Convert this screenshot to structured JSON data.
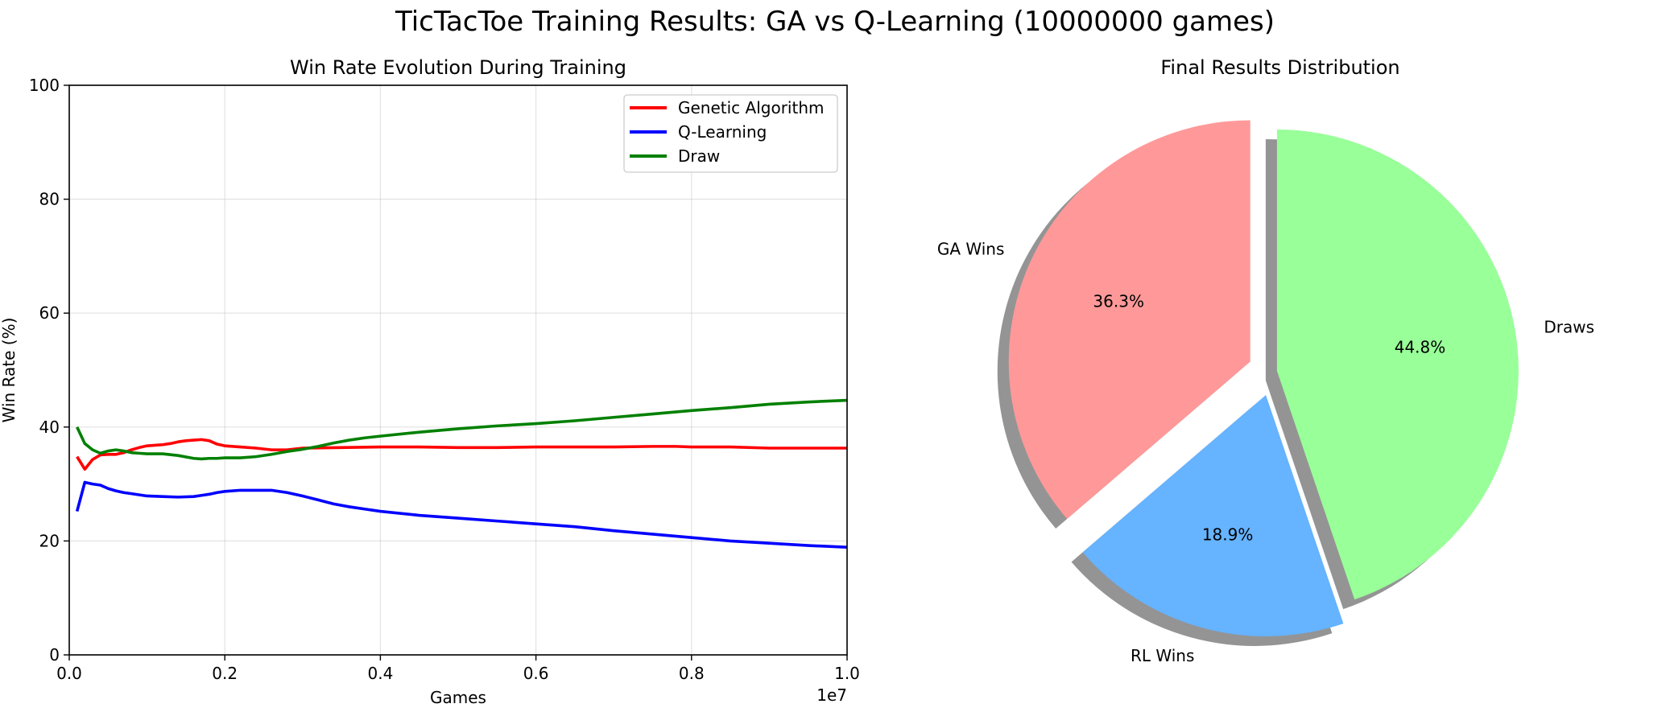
{
  "suptitle": "TicTacToe Training Results: GA vs Q-Learning (10000000 games)",
  "chart_data": [
    {
      "type": "line",
      "title": "Win Rate Evolution During Training",
      "xlabel": "Games",
      "ylabel": "Win Rate (%)",
      "x_offset_label": "1e7",
      "xlim": [
        0,
        1.0
      ],
      "ylim": [
        0,
        100
      ],
      "xticks": [
        0.0,
        0.2,
        0.4,
        0.6,
        0.8,
        1.0
      ],
      "xtick_labels": [
        "0.0",
        "0.2",
        "0.4",
        "0.6",
        "0.8",
        "1.0"
      ],
      "yticks": [
        0,
        20,
        40,
        60,
        80,
        100
      ],
      "ytick_labels": [
        "0",
        "20",
        "40",
        "60",
        "80",
        "100"
      ],
      "grid": true,
      "legend_position": "top-right",
      "series": [
        {
          "name": "Genetic Algorithm",
          "color": "#ff0000",
          "x": [
            0.01,
            0.02,
            0.03,
            0.04,
            0.05,
            0.06,
            0.07,
            0.08,
            0.09,
            0.1,
            0.11,
            0.12,
            0.13,
            0.14,
            0.15,
            0.16,
            0.17,
            0.18,
            0.19,
            0.2,
            0.22,
            0.24,
            0.26,
            0.28,
            0.3,
            0.35,
            0.4,
            0.45,
            0.5,
            0.55,
            0.6,
            0.65,
            0.7,
            0.75,
            0.78,
            0.8,
            0.85,
            0.9,
            0.95,
            1.0
          ],
          "y": [
            34.8,
            32.6,
            34.3,
            35.1,
            35.2,
            35.2,
            35.5,
            36.0,
            36.4,
            36.7,
            36.8,
            36.9,
            37.1,
            37.4,
            37.6,
            37.7,
            37.8,
            37.6,
            37.0,
            36.7,
            36.5,
            36.3,
            36.0,
            36.0,
            36.3,
            36.4,
            36.5,
            36.5,
            36.4,
            36.4,
            36.5,
            36.5,
            36.5,
            36.6,
            36.6,
            36.5,
            36.5,
            36.3,
            36.3,
            36.3
          ]
        },
        {
          "name": "Q-Learning",
          "color": "#0000ff",
          "x": [
            0.01,
            0.02,
            0.03,
            0.04,
            0.05,
            0.06,
            0.07,
            0.08,
            0.1,
            0.12,
            0.14,
            0.16,
            0.17,
            0.18,
            0.19,
            0.2,
            0.22,
            0.24,
            0.26,
            0.28,
            0.3,
            0.32,
            0.34,
            0.36,
            0.38,
            0.4,
            0.45,
            0.5,
            0.55,
            0.6,
            0.65,
            0.7,
            0.75,
            0.8,
            0.85,
            0.9,
            0.95,
            1.0
          ],
          "y": [
            25.2,
            30.3,
            30.0,
            29.8,
            29.2,
            28.8,
            28.5,
            28.3,
            27.9,
            27.8,
            27.7,
            27.8,
            28.0,
            28.2,
            28.5,
            28.7,
            28.9,
            28.9,
            28.9,
            28.5,
            27.9,
            27.2,
            26.5,
            26.0,
            25.6,
            25.2,
            24.5,
            24.0,
            23.5,
            23.0,
            22.5,
            21.8,
            21.2,
            20.6,
            20.0,
            19.6,
            19.2,
            18.9
          ]
        },
        {
          "name": "Draw",
          "color": "#008000",
          "x": [
            0.01,
            0.02,
            0.03,
            0.04,
            0.05,
            0.06,
            0.07,
            0.08,
            0.09,
            0.1,
            0.12,
            0.14,
            0.16,
            0.17,
            0.18,
            0.19,
            0.2,
            0.22,
            0.24,
            0.26,
            0.28,
            0.3,
            0.32,
            0.34,
            0.36,
            0.38,
            0.4,
            0.45,
            0.5,
            0.55,
            0.6,
            0.65,
            0.7,
            0.75,
            0.8,
            0.85,
            0.9,
            0.95,
            1.0
          ],
          "y": [
            40.0,
            37.1,
            36.0,
            35.4,
            35.8,
            36.0,
            35.8,
            35.5,
            35.4,
            35.3,
            35.3,
            35.0,
            34.5,
            34.4,
            34.5,
            34.5,
            34.6,
            34.6,
            34.8,
            35.2,
            35.7,
            36.1,
            36.6,
            37.2,
            37.7,
            38.1,
            38.4,
            39.1,
            39.7,
            40.2,
            40.6,
            41.1,
            41.7,
            42.3,
            42.9,
            43.4,
            44.0,
            44.4,
            44.7
          ]
        }
      ]
    },
    {
      "type": "pie",
      "title": "Final Results Distribution",
      "labels": [
        "GA Wins",
        "RL Wins",
        "Draws"
      ],
      "values": [
        36.3,
        18.9,
        44.8
      ],
      "value_labels": [
        "36.3%",
        "18.9%",
        "44.8%"
      ],
      "colors": [
        "#ff9999",
        "#66b3ff",
        "#99ff99"
      ],
      "explode": [
        0.1,
        0.1,
        0.02
      ],
      "shadow": true,
      "start_angle_deg": 90,
      "direction": "counterclockwise"
    }
  ]
}
